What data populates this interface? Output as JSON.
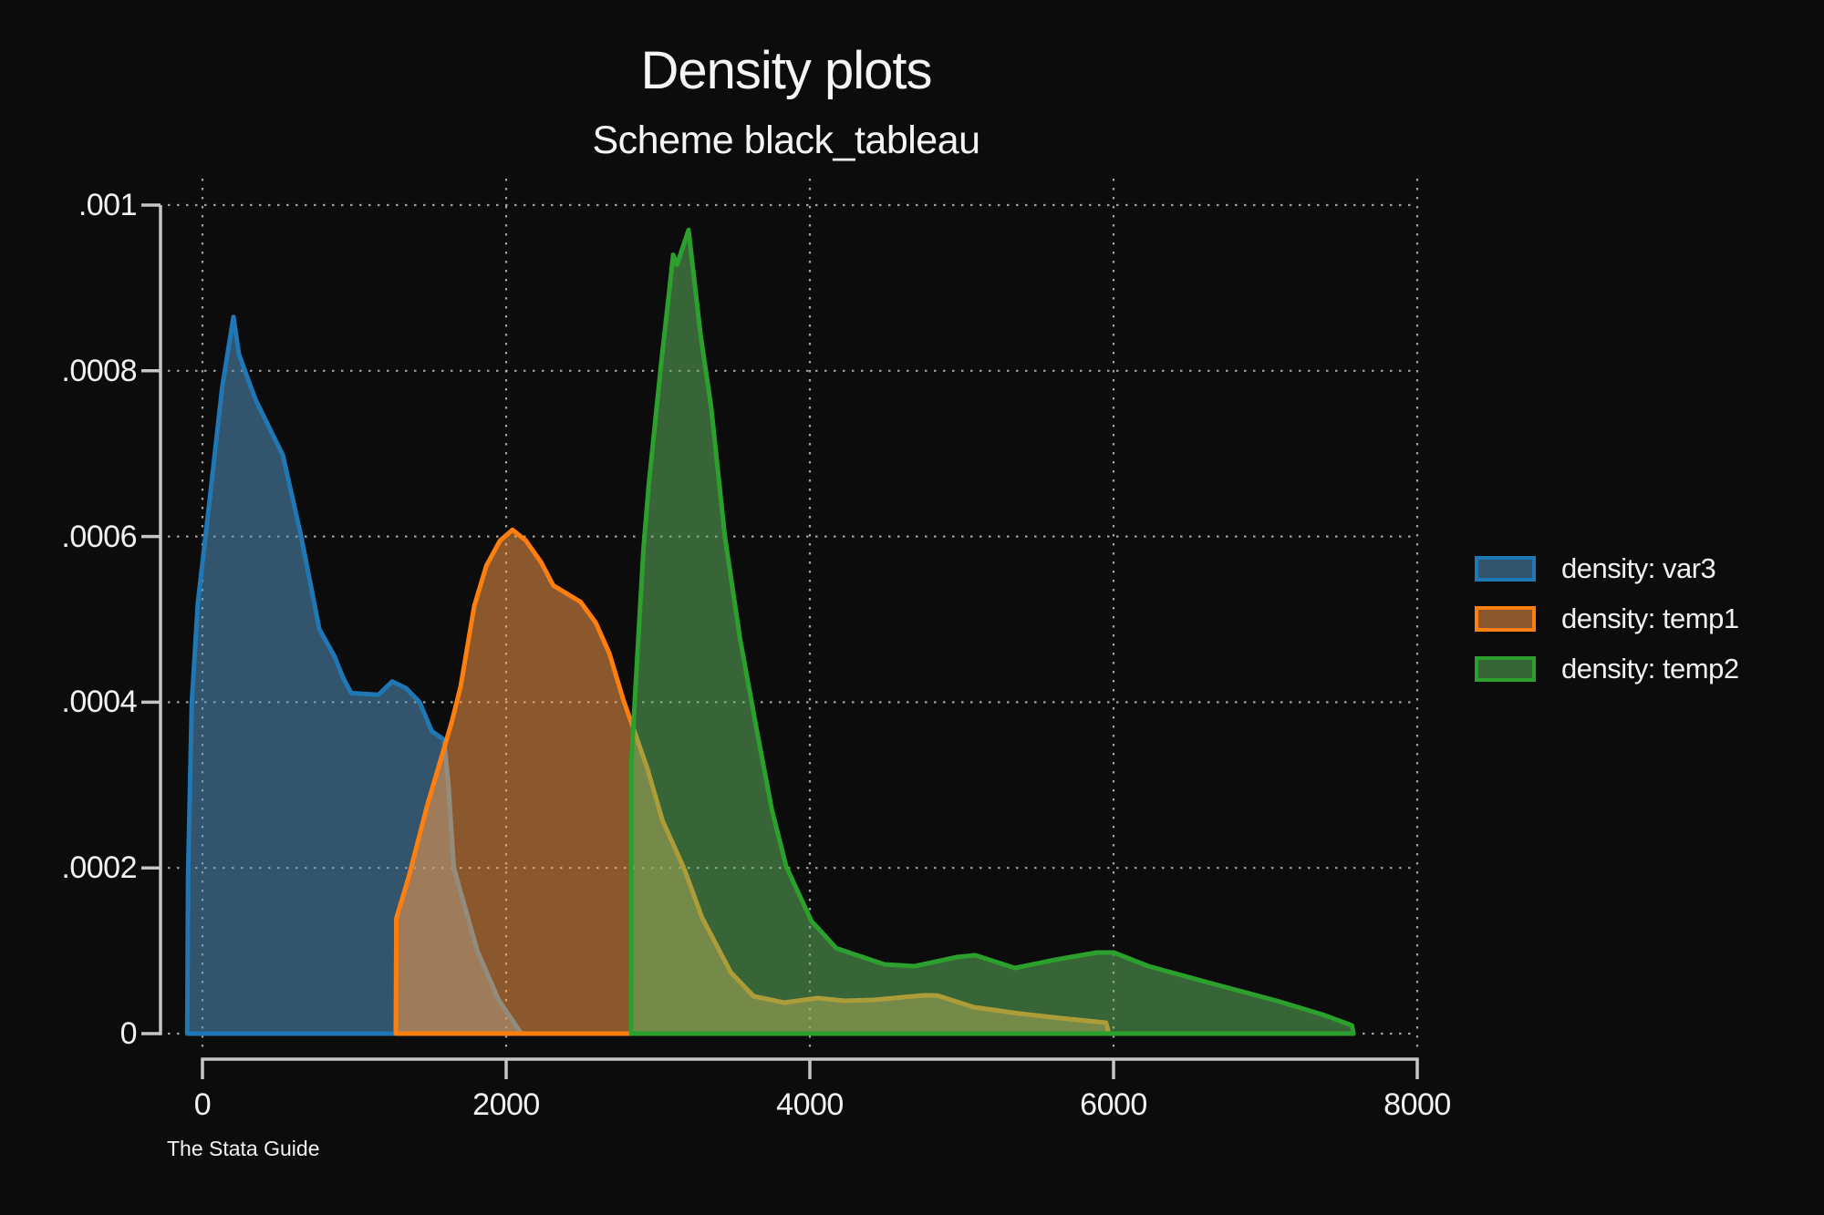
{
  "title": "Density plots",
  "subtitle": "Scheme black_tableau",
  "caption": "The Stata Guide",
  "background_color": "#0c0c0c",
  "axis_color": "#c6c6c6",
  "grid_color": "#bdbdbd",
  "text_color": "#f2f2f2",
  "legend": {
    "items": [
      {
        "label": "density: var3",
        "line_color": "#1f77b4",
        "fill_color": "#5799c7"
      },
      {
        "label": "density: temp1",
        "line_color": "#ff7f0e",
        "fill_color": "#ff9f4a"
      },
      {
        "label": "density: temp2",
        "line_color": "#2ca02c",
        "fill_color": "#61b861"
      }
    ]
  },
  "chart_data": {
    "type": "area",
    "title": "Density plots",
    "subtitle": "Scheme black_tableau",
    "xlabel": "",
    "ylabel": "",
    "xlim": [
      0,
      8000
    ],
    "ylim": [
      0,
      0.001
    ],
    "grid": true,
    "grid_style": "dotted",
    "legend_position": "right",
    "x_ticks": [
      {
        "label": "0",
        "value": 0
      },
      {
        "label": "2000",
        "value": 2000
      },
      {
        "label": "4000",
        "value": 4000
      },
      {
        "label": "6000",
        "value": 6000
      },
      {
        "label": "8000",
        "value": 8000
      }
    ],
    "y_ticks": [
      {
        "label": ".001",
        "value": 0.001
      },
      {
        "label": ".0008",
        "value": 0.0008
      },
      {
        "label": ".0006",
        "value": 0.0006
      },
      {
        "label": ".0004",
        "value": 0.0004
      },
      {
        "label": ".0002",
        "value": 0.0002
      },
      {
        "label": "0",
        "value": 0
      }
    ],
    "series": [
      {
        "name": "density: var3",
        "line_color": "#1f77b4",
        "fill_color": "#5799c7",
        "fill_opacity": 0.52,
        "points": [
          [
            -100,
            0
          ],
          [
            -95,
            0.00019
          ],
          [
            -70,
            0.0004
          ],
          [
            -30,
            0.00052
          ],
          [
            20,
            0.0006
          ],
          [
            48,
            0.000645
          ],
          [
            130,
            0.00078
          ],
          [
            204,
            0.000865
          ],
          [
            240,
            0.00082
          ],
          [
            280,
            0.0008
          ],
          [
            350,
            0.000765
          ],
          [
            530,
            0.000698
          ],
          [
            650,
            0.0006
          ],
          [
            770,
            0.000488
          ],
          [
            870,
            0.000455
          ],
          [
            930,
            0.000428
          ],
          [
            980,
            0.000411
          ],
          [
            1160,
            0.000409
          ],
          [
            1250,
            0.000425
          ],
          [
            1340,
            0.000417
          ],
          [
            1430,
            0.0004
          ],
          [
            1510,
            0.000365
          ],
          [
            1590,
            0.000355
          ],
          [
            1620,
            0.0003
          ],
          [
            1655,
            0.0002
          ],
          [
            1810,
            0.0001
          ],
          [
            1950,
            4.07e-05
          ],
          [
            2100,
            0
          ]
        ]
      },
      {
        "name": "density: temp1",
        "line_color": "#ff7f0e",
        "fill_color": "#ff9f4a",
        "fill_opacity": 0.52,
        "points": [
          [
            1273,
            0
          ],
          [
            1277,
            0.000139
          ],
          [
            1360,
            0.00019
          ],
          [
            1480,
            0.000275
          ],
          [
            1640,
            0.000375
          ],
          [
            1700,
            0.000419
          ],
          [
            1790,
            0.000516
          ],
          [
            1870,
            0.000565
          ],
          [
            1960,
            0.000595
          ],
          [
            2042,
            0.000608
          ],
          [
            2130,
            0.000595
          ],
          [
            2230,
            0.000569
          ],
          [
            2310,
            0.000541
          ],
          [
            2490,
            0.000521
          ],
          [
            2590,
            0.000496
          ],
          [
            2680,
            0.000459
          ],
          [
            2770,
            0.000404
          ],
          [
            2930,
            0.00032
          ],
          [
            3030,
            0.000257
          ],
          [
            3170,
            0.0002
          ],
          [
            3290,
            0.00014
          ],
          [
            3480,
            7.37e-05
          ],
          [
            3630,
            4.51e-05
          ],
          [
            3830,
            3.74e-05
          ],
          [
            4050,
            4.29e-05
          ],
          [
            4230,
            3.96e-05
          ],
          [
            4420,
            4.07e-05
          ],
          [
            4750,
            4.62e-05
          ],
          [
            4840,
            4.6e-05
          ],
          [
            5080,
            3.19e-05
          ],
          [
            5380,
            2.42e-05
          ],
          [
            5650,
            1.87e-05
          ],
          [
            5950,
            1.32e-05
          ],
          [
            5970,
            0
          ]
        ]
      },
      {
        "name": "density: temp2",
        "line_color": "#2ca02c",
        "fill_color": "#61b861",
        "fill_opacity": 0.52,
        "points": [
          [
            2823,
            0
          ],
          [
            2825,
            0.00033
          ],
          [
            2870,
            0.000477
          ],
          [
            2905,
            0.000587
          ],
          [
            2940,
            0.000664
          ],
          [
            3020,
            0.000807
          ],
          [
            3080,
            0.000906
          ],
          [
            3100,
            0.00094
          ],
          [
            3125,
            0.000928
          ],
          [
            3201,
            0.00097
          ],
          [
            3280,
            0.000844
          ],
          [
            3350,
            0.000756
          ],
          [
            3440,
            0.0006
          ],
          [
            3540,
            0.000477
          ],
          [
            3650,
            0.000367
          ],
          [
            3750,
            0.00027
          ],
          [
            3844,
            0.000202
          ],
          [
            4010,
            0.000136
          ],
          [
            4175,
            0.000103
          ],
          [
            4490,
            8.36e-05
          ],
          [
            4690,
            8.14e-05
          ],
          [
            4970,
            9.24e-05
          ],
          [
            5090,
            9.46e-05
          ],
          [
            5350,
            7.92e-05
          ],
          [
            5615,
            8.91e-05
          ],
          [
            5890,
            9.79e-05
          ],
          [
            6000,
            9.79e-05
          ],
          [
            6230,
            8.14e-05
          ],
          [
            6670,
            5.94e-05
          ],
          [
            7075,
            3.96e-05
          ],
          [
            7375,
            2.31e-05
          ],
          [
            7570,
            9.9e-06
          ],
          [
            7580,
            0
          ]
        ]
      }
    ]
  }
}
